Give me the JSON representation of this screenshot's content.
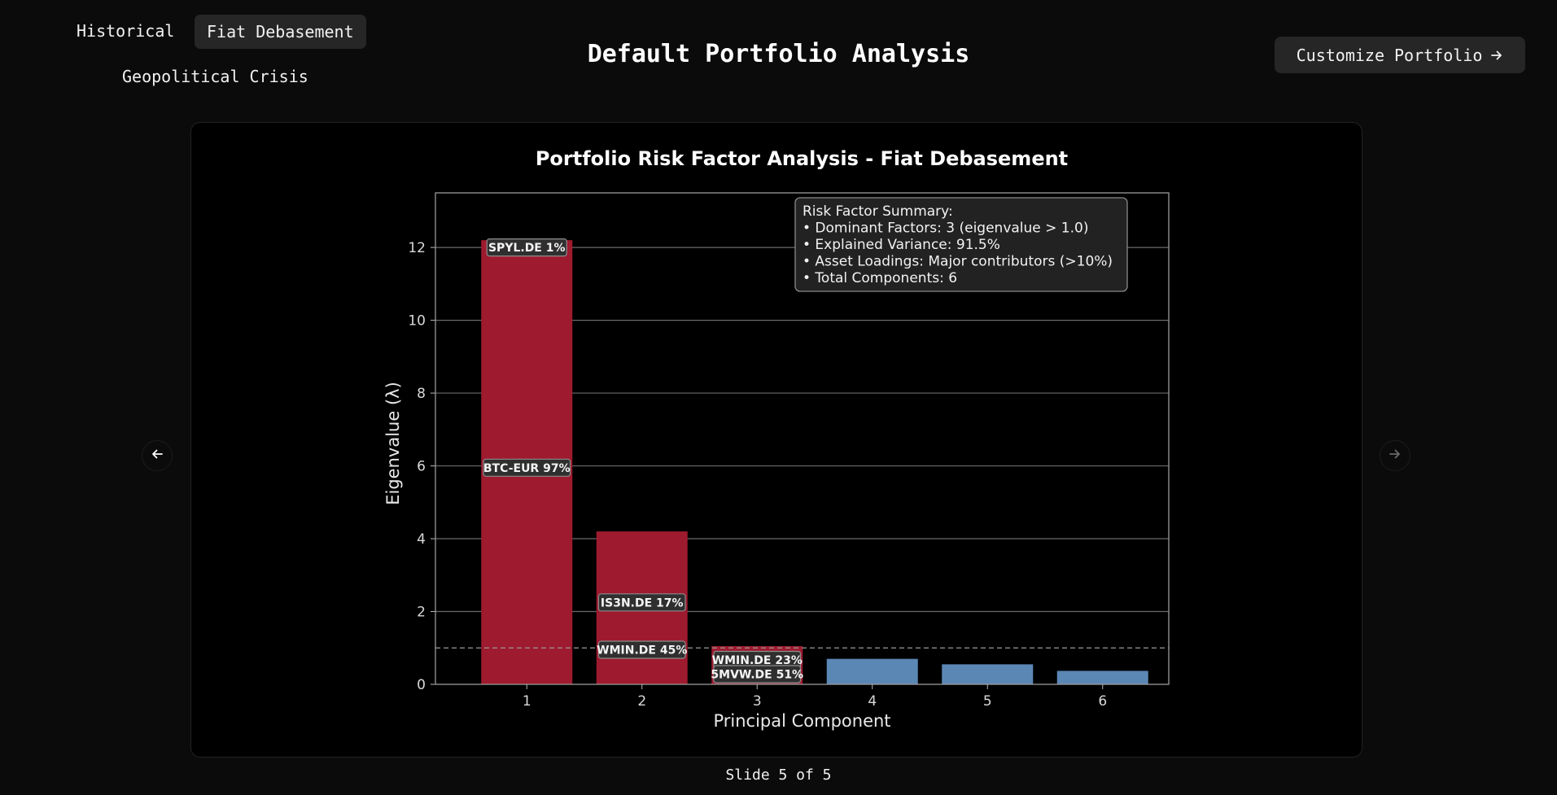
{
  "nav": {
    "tabs": [
      {
        "label": "Historical"
      },
      {
        "label": "Fiat Debasement"
      },
      {
        "label": "Geopolitical Crisis"
      }
    ]
  },
  "header": {
    "title": "Default Portfolio Analysis",
    "customize_label": "Customize Portfolio"
  },
  "icons": {
    "customize": "arrow-right-icon",
    "prev": "arrow-left-icon",
    "next": "arrow-right-icon"
  },
  "footer": {
    "slide_counter": "Slide 5 of 5"
  },
  "colors": {
    "dominant_bar": "#9e1a2e",
    "minor_bar": "#5b87b5",
    "background": "#000000"
  },
  "chart_data": {
    "type": "bar",
    "title": "Portfolio Risk Factor Analysis - Fiat Debasement",
    "xlabel": "Principal Component",
    "ylabel": "Eigenvalue (λ)",
    "categories": [
      "1",
      "2",
      "3",
      "4",
      "5",
      "6"
    ],
    "values": [
      12.2,
      4.2,
      1.05,
      0.7,
      0.55,
      0.37
    ],
    "ylim": [
      0,
      13.5
    ],
    "yticks": [
      0,
      2,
      4,
      6,
      8,
      10,
      12
    ],
    "grid": true,
    "threshold": 1.0,
    "dominant_count": 3,
    "annotations": [
      {
        "text": "SPYL.DE 1%",
        "x": 1,
        "y": 12.0
      },
      {
        "text": "BTC-EUR 97%",
        "x": 1,
        "y": 5.95
      },
      {
        "text": "IS3N.DE 17%",
        "x": 2,
        "y": 2.25
      },
      {
        "text": "WMIN.DE 45%",
        "x": 2,
        "y": 0.95
      },
      {
        "text": "WMIN.DE 23%",
        "x": 3,
        "y": 0.67
      },
      {
        "text": "5MVW.DE 51%",
        "x": 3,
        "y": 0.28
      }
    ],
    "summary": [
      "Risk Factor Summary:",
      "• Dominant Factors: 3 (eigenvalue > 1.0)",
      "• Explained Variance: 91.5%",
      "• Asset Loadings: Major contributors (>10%)",
      "• Total Components: 6"
    ]
  }
}
